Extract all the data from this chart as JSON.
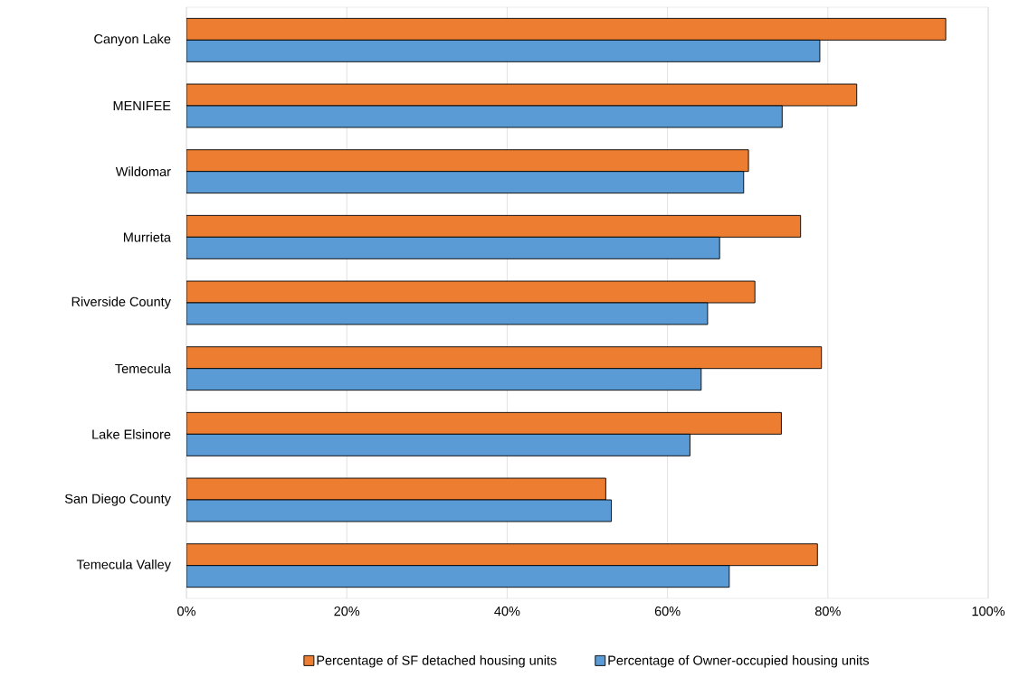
{
  "chart_data": {
    "type": "bar",
    "orientation": "horizontal",
    "categories": [
      "Canyon Lake",
      "MENIFEE",
      "Wildomar",
      "Murrieta",
      "Riverside County",
      "Temecula",
      "Lake Elsinore",
      "San Diego County",
      "Temecula Valley"
    ],
    "series": [
      {
        "name": "Percentage of SF detached housing units",
        "color": "#ed7d31",
        "values": [
          94.7,
          83.6,
          70.1,
          76.6,
          70.9,
          79.2,
          74.2,
          52.3,
          78.7
        ]
      },
      {
        "name": "Percentage of Owner-occupied housing units",
        "color": "#5b9bd5",
        "values": [
          79.0,
          74.3,
          69.5,
          66.5,
          65.0,
          64.2,
          62.8,
          53.0,
          67.7
        ]
      }
    ],
    "xlim": [
      0,
      100
    ],
    "xticks": [
      {
        "value": 0,
        "label": "0%"
      },
      {
        "value": 20,
        "label": "20%"
      },
      {
        "value": 40,
        "label": "40%"
      },
      {
        "value": 60,
        "label": "60%"
      },
      {
        "value": 80,
        "label": "80%"
      },
      {
        "value": 100,
        "label": "100%"
      }
    ],
    "grid": "x",
    "legend": "bottom"
  }
}
